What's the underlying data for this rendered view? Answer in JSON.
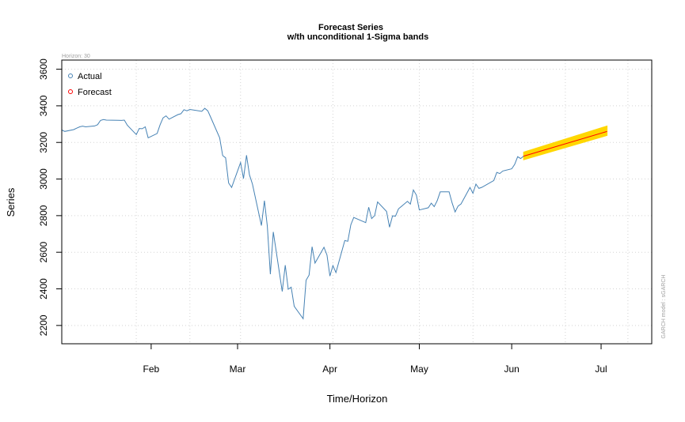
{
  "chart_data": {
    "type": "line",
    "title": "Forecast Series",
    "subtitle": "w/th unconditional 1-Sigma bands",
    "xlabel": "Time/Horizon",
    "ylabel": "Series",
    "horizon_note": "Horizon: 30",
    "side_note": "GARCH model : sGARCH",
    "ylim": [
      2100,
      3650
    ],
    "yticks": [
      2200,
      2400,
      2600,
      2800,
      3000,
      3200,
      3400,
      3600
    ],
    "xlim": [
      "2020-01-02",
      "2020-07-18"
    ],
    "xticks": [
      {
        "label": "Feb",
        "date": "2020-02-01"
      },
      {
        "label": "Mar",
        "date": "2020-03-01"
      },
      {
        "label": "Apr",
        "date": "2020-04-01"
      },
      {
        "label": "May",
        "date": "2020-05-01"
      },
      {
        "label": "Jun",
        "date": "2020-06-01"
      },
      {
        "label": "Jul",
        "date": "2020-07-01"
      }
    ],
    "vgrid_dates": [
      "2020-01-27",
      "2020-02-14",
      "2020-03-02",
      "2020-04-02",
      "2020-05-01",
      "2020-05-19",
      "2020-06-19",
      "2020-07-10"
    ],
    "grid": true,
    "legend": {
      "position": "top-left",
      "entries": [
        {
          "label": "Actual",
          "color": "#4682b4"
        },
        {
          "label": "Forecast",
          "color": "#ff0000"
        }
      ]
    },
    "colors": {
      "actual": "#4682b4",
      "forecast": "#ff0000",
      "band": "#ffd700",
      "grid": "#d3d3d3"
    },
    "series": [
      {
        "name": "Actual",
        "points": [
          [
            "2020-01-02",
            3268
          ],
          [
            "2020-01-03",
            3260
          ],
          [
            "2020-01-06",
            3270
          ],
          [
            "2020-01-07",
            3278
          ],
          [
            "2020-01-08",
            3285
          ],
          [
            "2020-01-09",
            3289
          ],
          [
            "2020-01-10",
            3285
          ],
          [
            "2020-01-13",
            3290
          ],
          [
            "2020-01-14",
            3297
          ],
          [
            "2020-01-15",
            3320
          ],
          [
            "2020-01-16",
            3325
          ],
          [
            "2020-01-17",
            3322
          ],
          [
            "2020-01-21",
            3321
          ],
          [
            "2020-01-22",
            3320
          ],
          [
            "2020-01-23",
            3322
          ],
          [
            "2020-01-24",
            3294
          ],
          [
            "2020-01-27",
            3243
          ],
          [
            "2020-01-28",
            3276
          ],
          [
            "2020-01-29",
            3275
          ],
          [
            "2020-01-30",
            3285
          ],
          [
            "2020-01-31",
            3225
          ],
          [
            "2020-02-03",
            3249
          ],
          [
            "2020-02-04",
            3297
          ],
          [
            "2020-02-05",
            3334
          ],
          [
            "2020-02-06",
            3345
          ],
          [
            "2020-02-07",
            3327
          ],
          [
            "2020-02-10",
            3352
          ],
          [
            "2020-02-11",
            3357
          ],
          [
            "2020-02-12",
            3379
          ],
          [
            "2020-02-13",
            3373
          ],
          [
            "2020-02-14",
            3380
          ],
          [
            "2020-02-18",
            3370
          ],
          [
            "2020-02-19",
            3386
          ],
          [
            "2020-02-20",
            3373
          ],
          [
            "2020-02-21",
            3337
          ],
          [
            "2020-02-24",
            3225
          ],
          [
            "2020-02-25",
            3128
          ],
          [
            "2020-02-26",
            3116
          ],
          [
            "2020-02-27",
            2978
          ],
          [
            "2020-02-28",
            2954
          ],
          [
            "2020-03-02",
            3090
          ],
          [
            "2020-03-03",
            3003
          ],
          [
            "2020-03-04",
            3130
          ],
          [
            "2020-03-05",
            3023
          ],
          [
            "2020-03-06",
            2972
          ],
          [
            "2020-03-09",
            2746
          ],
          [
            "2020-03-10",
            2882
          ],
          [
            "2020-03-11",
            2741
          ],
          [
            "2020-03-12",
            2480
          ],
          [
            "2020-03-13",
            2711
          ],
          [
            "2020-03-16",
            2386
          ],
          [
            "2020-03-17",
            2529
          ],
          [
            "2020-03-18",
            2398
          ],
          [
            "2020-03-19",
            2409
          ],
          [
            "2020-03-20",
            2305
          ],
          [
            "2020-03-23",
            2237
          ],
          [
            "2020-03-24",
            2447
          ],
          [
            "2020-03-25",
            2475
          ],
          [
            "2020-03-26",
            2630
          ],
          [
            "2020-03-27",
            2541
          ],
          [
            "2020-03-30",
            2627
          ],
          [
            "2020-03-31",
            2585
          ],
          [
            "2020-04-01",
            2470
          ],
          [
            "2020-04-02",
            2527
          ],
          [
            "2020-04-03",
            2489
          ],
          [
            "2020-04-06",
            2664
          ],
          [
            "2020-04-07",
            2660
          ],
          [
            "2020-04-08",
            2750
          ],
          [
            "2020-04-09",
            2790
          ],
          [
            "2020-04-13",
            2762
          ],
          [
            "2020-04-14",
            2846
          ],
          [
            "2020-04-15",
            2784
          ],
          [
            "2020-04-16",
            2800
          ],
          [
            "2020-04-17",
            2875
          ],
          [
            "2020-04-20",
            2823
          ],
          [
            "2020-04-21",
            2737
          ],
          [
            "2020-04-22",
            2799
          ],
          [
            "2020-04-23",
            2797
          ],
          [
            "2020-04-24",
            2837
          ],
          [
            "2020-04-27",
            2878
          ],
          [
            "2020-04-28",
            2863
          ],
          [
            "2020-04-29",
            2940
          ],
          [
            "2020-04-30",
            2912
          ],
          [
            "2020-05-01",
            2831
          ],
          [
            "2020-05-04",
            2843
          ],
          [
            "2020-05-05",
            2868
          ],
          [
            "2020-05-06",
            2849
          ],
          [
            "2020-05-07",
            2882
          ],
          [
            "2020-05-08",
            2930
          ],
          [
            "2020-05-11",
            2930
          ],
          [
            "2020-05-12",
            2870
          ],
          [
            "2020-05-13",
            2820
          ],
          [
            "2020-05-14",
            2852
          ],
          [
            "2020-05-15",
            2864
          ],
          [
            "2020-05-18",
            2954
          ],
          [
            "2020-05-19",
            2922
          ],
          [
            "2020-05-20",
            2972
          ],
          [
            "2020-05-21",
            2949
          ],
          [
            "2020-05-22",
            2955
          ],
          [
            "2020-05-26",
            2992
          ],
          [
            "2020-05-27",
            3036
          ],
          [
            "2020-05-28",
            3030
          ],
          [
            "2020-05-29",
            3044
          ],
          [
            "2020-06-01",
            3056
          ],
          [
            "2020-06-02",
            3080
          ],
          [
            "2020-06-03",
            3122
          ],
          [
            "2020-06-04",
            3112
          ],
          [
            "2020-06-05",
            3125
          ]
        ]
      },
      {
        "name": "Forecast",
        "points": [
          [
            "2020-06-05",
            3125
          ],
          [
            "2020-07-03",
            3260
          ]
        ],
        "band": {
          "lower": [
            3105,
            3238
          ],
          "upper": [
            3147,
            3290
          ]
        }
      }
    ]
  }
}
